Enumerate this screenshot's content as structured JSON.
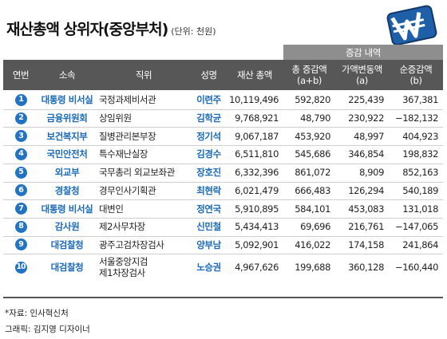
{
  "header": {
    "title": "재산총액 상위자(중앙부처)",
    "unit": "(단위: 천원)"
  },
  "table": {
    "group_header": "증감 내역",
    "columns": [
      [
        "연번"
      ],
      [
        "소속"
      ],
      [
        "직위"
      ],
      [
        "성명"
      ],
      [
        "재산 총액"
      ],
      [
        "총 증감액",
        "(a+b)"
      ],
      [
        "가액변동액",
        "(a)"
      ],
      [
        "순증감액",
        "(b)"
      ]
    ],
    "rows": [
      [
        "1",
        "대통령 비서실",
        "국정과제비서관",
        "이련주",
        "10,119,496",
        "592,820",
        "225,439",
        "367,381"
      ],
      [
        "2",
        "금융위원회",
        "상임위원",
        "김학균",
        "9,768,921",
        "48,790",
        "230,922",
        "−182,132"
      ],
      [
        "3",
        "보건복지부",
        "질병관리본부장",
        "정기석",
        "9,067,187",
        "453,920",
        "48,997",
        "404,923"
      ],
      [
        "4",
        "국민안전처",
        "특수재난실장",
        "김경수",
        "6,511,810",
        "545,686",
        "346,854",
        "198,832"
      ],
      [
        "5",
        "외교부",
        "국무총리 외교보좌관",
        "장호진",
        "6,332,396",
        "861,072",
        "8,909",
        "852,163"
      ],
      [
        "6",
        "경찰청",
        "경무인사기획관",
        "최현락",
        "6,021,479",
        "666,483",
        "126,294",
        "540,189"
      ],
      [
        "7",
        "대통령 비서실",
        "대변인",
        "정연국",
        "5,910,895",
        "584,101",
        "453,083",
        "131,018"
      ],
      [
        "8",
        "감사원",
        "제2사무차장",
        "신민철",
        "5,434,413",
        "69,696",
        "216,761",
        "−147,065"
      ],
      [
        "9",
        "대검찰청",
        "광주고검차장검사",
        "양부남",
        "5,092,901",
        "416,022",
        "174,158",
        "241,864"
      ],
      [
        "10",
        "대검찰청",
        [
          "서울중앙지검",
          "제1차장검사"
        ],
        "노승권",
        "4,967,626",
        "199,688",
        "360,128",
        "−160,440"
      ]
    ]
  },
  "footer": {
    "source": "*자료: 인사혁신처",
    "credit": "그래픽: 김지영 디자이너"
  }
}
